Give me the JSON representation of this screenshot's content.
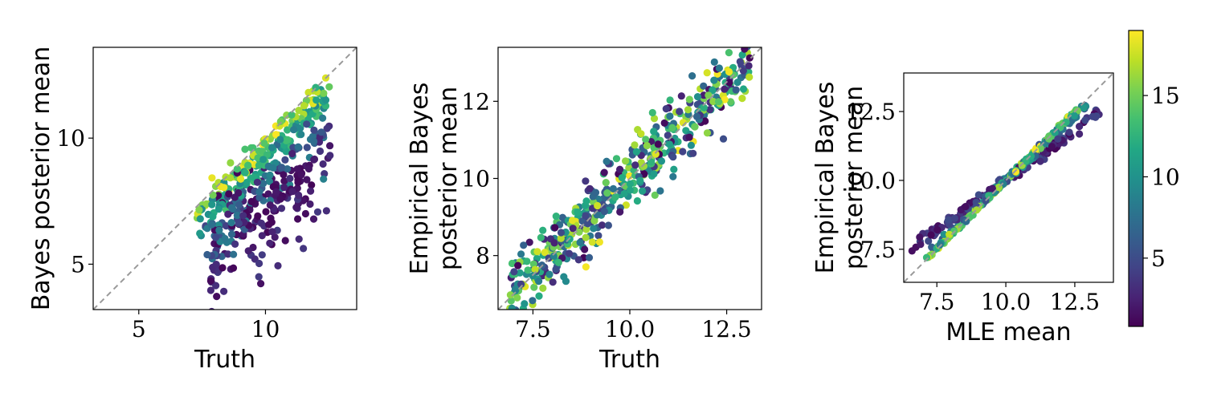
{
  "chart_data": [
    {
      "type": "scatter",
      "id": "panel-1",
      "xlabel": "Truth",
      "ylabel_lines": [
        "Bayes posterior mean"
      ],
      "xlim": [
        3.2,
        13.6
      ],
      "ylim": [
        3.2,
        13.6
      ],
      "xticks": [
        {
          "v": 5,
          "label": "5"
        },
        {
          "v": 10,
          "label": "10"
        }
      ],
      "yticks": [
        {
          "v": 5,
          "label": "5"
        },
        {
          "v": 10,
          "label": "10"
        }
      ],
      "reference_line": "y = x (dashed gray)",
      "color_by": "colorbar value",
      "clusters": [
        {
          "x_range": [
            7.2,
            12.6
          ],
          "slope": 1.0,
          "offset": -0.25,
          "spread": 0.25,
          "c_range": [
            13,
            19
          ],
          "count": 90
        },
        {
          "x_range": [
            7.4,
            12.4
          ],
          "slope": 1.0,
          "offset": -0.9,
          "spread": 0.35,
          "c_range": [
            9,
            14
          ],
          "count": 110
        },
        {
          "x_range": [
            7.6,
            12.3
          ],
          "slope": 1.0,
          "offset": -1.9,
          "spread": 0.55,
          "c_range": [
            4,
            9
          ],
          "count": 110
        },
        {
          "x_range": [
            7.8,
            12.6
          ],
          "slope": 1.0,
          "offset": -3.2,
          "spread": 1.0,
          "c_range": [
            1,
            4
          ],
          "count": 110
        },
        {
          "x_range": [
            8.0,
            11.5
          ],
          "slope": 0.3,
          "offset": -2.2,
          "spread": 0.6,
          "c_range": [
            1,
            2
          ],
          "count": 60
        }
      ]
    },
    {
      "type": "scatter",
      "id": "panel-2",
      "xlabel": "Truth",
      "ylabel_lines": [
        "Empirical Bayes",
        "posterior mean"
      ],
      "xlim": [
        6.6,
        13.4
      ],
      "ylim": [
        6.6,
        13.4
      ],
      "xticks": [
        {
          "v": 7.5,
          "label": "7.5"
        },
        {
          "v": 10.0,
          "label": "10.0"
        },
        {
          "v": 12.5,
          "label": "12.5"
        }
      ],
      "yticks": [
        {
          "v": 8,
          "label": "8"
        },
        {
          "v": 10,
          "label": "10"
        },
        {
          "v": 12,
          "label": "12"
        }
      ],
      "reference_line": "y = x (dashed gray)",
      "color_by": "colorbar value",
      "clusters": [
        {
          "x_range": [
            6.9,
            13.1
          ],
          "slope": 1.0,
          "offset": 0.0,
          "spread": 0.45,
          "c_range": [
            1,
            19
          ],
          "count": 480
        }
      ]
    },
    {
      "type": "scatter",
      "id": "panel-3",
      "xlabel": "MLE mean",
      "ylabel_lines": [
        "Empirical Bayes",
        "posterior mean"
      ],
      "xlim": [
        6.3,
        13.9
      ],
      "ylim": [
        6.3,
        13.9
      ],
      "xticks": [
        {
          "v": 7.5,
          "label": "7.5"
        },
        {
          "v": 10.0,
          "label": "10.0"
        },
        {
          "v": 12.5,
          "label": "12.5"
        }
      ],
      "yticks": [
        {
          "v": 7.5,
          "label": "7.5"
        },
        {
          "v": 10.0,
          "label": "10.0"
        },
        {
          "v": 12.5,
          "label": "12.5"
        }
      ],
      "reference_line": "y = x (dashed gray)",
      "color_by": "colorbar value",
      "clusters": [
        {
          "x_range": [
            7.1,
            12.6
          ],
          "slope": 0.99,
          "offset": 0.0,
          "spread": 0.04,
          "c_range": [
            11,
            19
          ],
          "count": 160
        },
        {
          "x_range": [
            7.3,
            12.9
          ],
          "slope": 0.93,
          "offset": 0.0,
          "spread": 0.07,
          "c_range": [
            5,
            11
          ],
          "count": 140
        },
        {
          "x_range": [
            6.6,
            13.5
          ],
          "slope": 0.72,
          "offset": 0.0,
          "spread": 0.1,
          "c_range": [
            1,
            5
          ],
          "count": 130
        }
      ]
    }
  ],
  "colorbar": {
    "colormap": "viridis",
    "range": [
      0.8,
      19
    ],
    "ticks": [
      {
        "v": 5,
        "label": "5"
      },
      {
        "v": 10,
        "label": "10"
      },
      {
        "v": 15,
        "label": "15"
      }
    ]
  },
  "colors": {
    "viridis_stops": [
      "#440154",
      "#482475",
      "#414487",
      "#355f8d",
      "#2a788e",
      "#21918c",
      "#22a884",
      "#44bf70",
      "#7ad151",
      "#bddf26",
      "#fde725"
    ],
    "reference_line": "#9a9a9a"
  }
}
